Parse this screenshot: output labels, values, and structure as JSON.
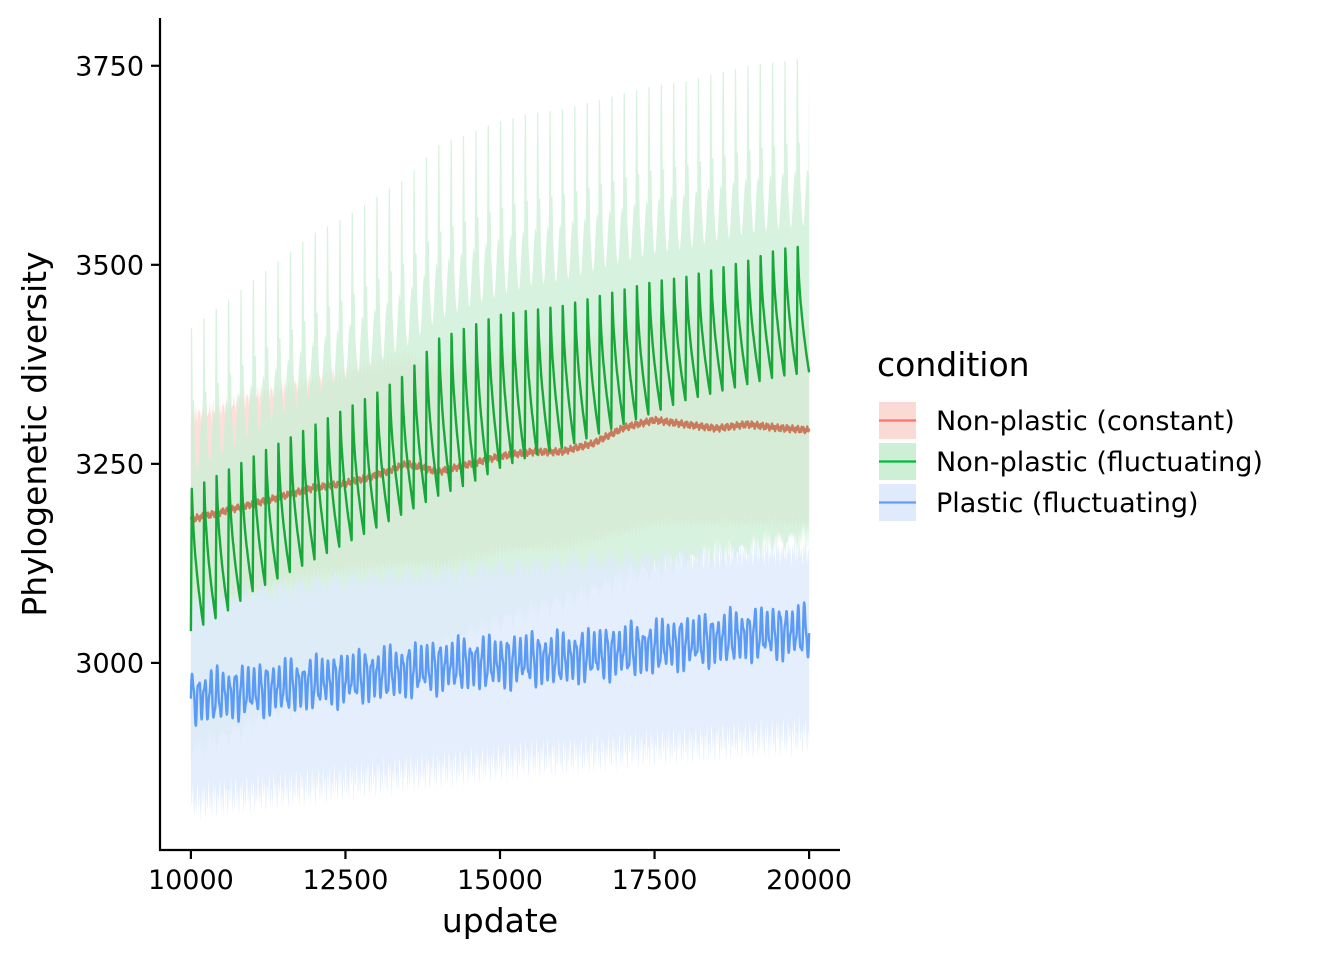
{
  "chart_data": {
    "type": "line",
    "title": "",
    "xlabel": "update",
    "ylabel": "Phylogenetic diversity",
    "xlim": [
      9500,
      20500
    ],
    "ylim": [
      2765,
      3810
    ],
    "x_ticks": [
      10000,
      12500,
      15000,
      17500,
      20000
    ],
    "x_tick_labels": [
      "10000",
      "12500",
      "15000",
      "17500",
      "20000"
    ],
    "y_ticks": [
      3000,
      3250,
      3500,
      3750
    ],
    "y_tick_labels": [
      "3000",
      "3250",
      "3500",
      "3750"
    ],
    "grid": false,
    "legend": {
      "title": "condition",
      "placement": "right"
    },
    "series": [
      {
        "name": "Non-plastic (constant)",
        "color": "#f8766d",
        "line_color": "#c97b5e",
        "ribbon_color": "#fbd9d5",
        "pattern": "smooth",
        "x": [
          10000,
          10500,
          11000,
          11500,
          12000,
          12500,
          13000,
          13500,
          14000,
          14500,
          15000,
          15500,
          16000,
          16500,
          17000,
          17500,
          18000,
          18500,
          19000,
          19500,
          20000
        ],
        "mean": [
          3180,
          3190,
          3200,
          3210,
          3220,
          3225,
          3235,
          3250,
          3240,
          3250,
          3260,
          3265,
          3265,
          3275,
          3295,
          3305,
          3300,
          3295,
          3300,
          3295,
          3292
        ],
        "lower": [
          3075,
          3080,
          3090,
          3100,
          3110,
          3115,
          3120,
          3125,
          3120,
          3130,
          3140,
          3145,
          3145,
          3155,
          3165,
          3175,
          3175,
          3175,
          3175,
          3175,
          3175
        ],
        "upper": [
          3310,
          3320,
          3335,
          3345,
          3355,
          3365,
          3375,
          3385,
          3370,
          3375,
          3385,
          3395,
          3400,
          3405,
          3420,
          3430,
          3435,
          3430,
          3430,
          3425,
          3420
        ]
      },
      {
        "name": "Non-plastic (fluctuating)",
        "color": "#00ba38",
        "line_color": "#18a83a",
        "ribbon_color": "#cdefd6",
        "pattern": "sawtooth",
        "period": 200,
        "x": [
          10000,
          10500,
          11000,
          11500,
          12000,
          12500,
          13000,
          13500,
          14000,
          14500,
          15000,
          15500,
          16000,
          16500,
          17000,
          17500,
          18000,
          18500,
          19000,
          19500,
          20000
        ],
        "trough": [
          3040,
          3060,
          3090,
          3110,
          3130,
          3150,
          3170,
          3190,
          3210,
          3225,
          3245,
          3260,
          3270,
          3285,
          3300,
          3315,
          3330,
          3340,
          3350,
          3360,
          3365
        ],
        "peak": [
          3230,
          3250,
          3270,
          3290,
          3310,
          3330,
          3350,
          3375,
          3420,
          3435,
          3450,
          3455,
          3460,
          3470,
          3480,
          3490,
          3495,
          3505,
          3515,
          3530,
          3535
        ],
        "band_low": [
          2880,
          2895,
          2915,
          2930,
          2945,
          2960,
          2975,
          2990,
          3010,
          3025,
          3040,
          3055,
          3065,
          3080,
          3095,
          3105,
          3115,
          3125,
          3130,
          3140,
          3145
        ],
        "band_high": [
          3420,
          3450,
          3480,
          3510,
          3540,
          3560,
          3585,
          3610,
          3650,
          3665,
          3680,
          3690,
          3695,
          3705,
          3715,
          3725,
          3730,
          3740,
          3750,
          3755,
          3760
        ]
      },
      {
        "name": "Plastic (fluctuating)",
        "color": "#619cff",
        "line_color": "#5b9af5",
        "ribbon_color": "#dfeafd",
        "pattern": "oscillating",
        "period": 100,
        "amplitude": 25,
        "x": [
          10000,
          10500,
          11000,
          11500,
          12000,
          12500,
          13000,
          13500,
          14000,
          14500,
          15000,
          15500,
          16000,
          16500,
          17000,
          17500,
          18000,
          18500,
          19000,
          19500,
          20000
        ],
        "mean": [
          2955,
          2960,
          2965,
          2970,
          2975,
          2980,
          2985,
          2990,
          2995,
          3000,
          3000,
          3005,
          3005,
          3010,
          3015,
          3020,
          3025,
          3030,
          3035,
          3038,
          3040
        ],
        "lower": [
          2825,
          2830,
          2835,
          2840,
          2845,
          2850,
          2855,
          2860,
          2865,
          2870,
          2875,
          2880,
          2882,
          2885,
          2890,
          2893,
          2896,
          2900,
          2903,
          2906,
          2910
        ],
        "upper": [
          3080,
          3085,
          3090,
          3095,
          3100,
          3105,
          3108,
          3110,
          3113,
          3116,
          3120,
          3123,
          3126,
          3128,
          3130,
          3132,
          3134,
          3136,
          3138,
          3140,
          3140
        ]
      }
    ]
  }
}
